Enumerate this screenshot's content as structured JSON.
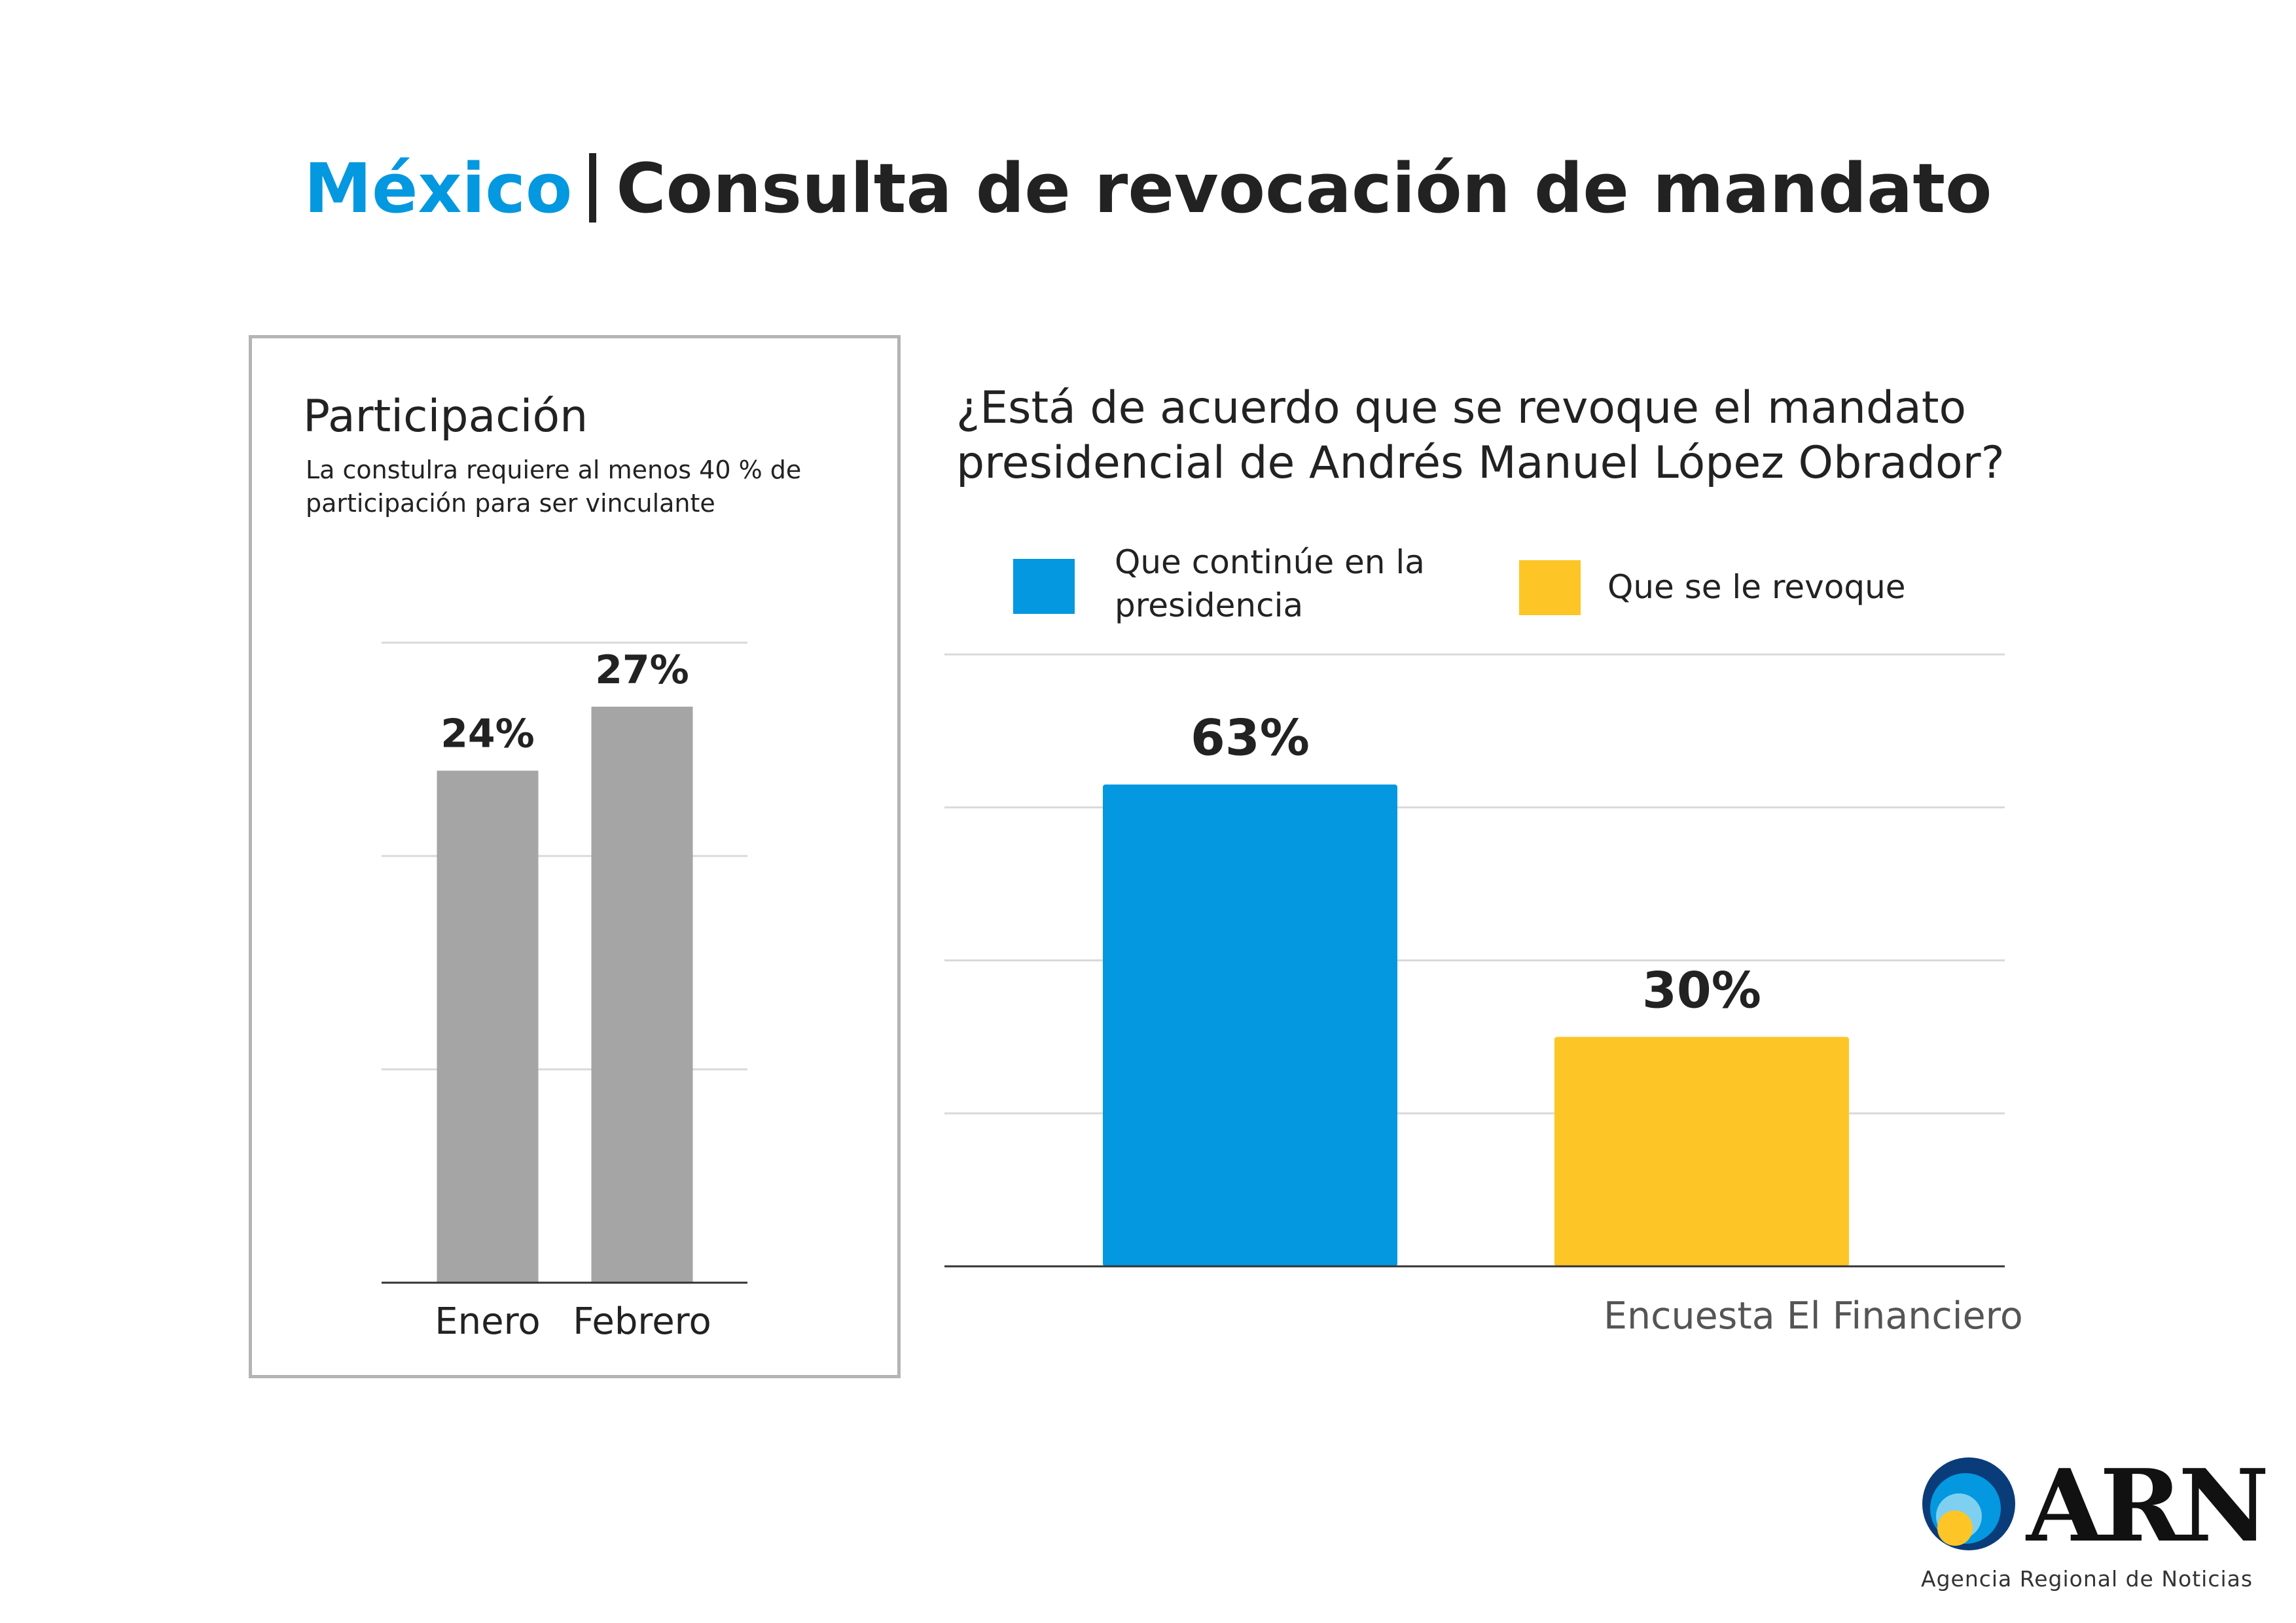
{
  "header": {
    "country": "México",
    "title": "Consulta de revocación de mandato"
  },
  "colors": {
    "accent_blue": "#0398df",
    "yellow": "#fdc526",
    "gray_bar": "#a5a5a5",
    "grid": "#d9d9d9",
    "panel_border": "#b4b4b4"
  },
  "left_panel": {
    "title": "Participación",
    "note": "La constulra requiere al menos 40 % de participación para ser vinculante"
  },
  "right_panel": {
    "question": "¿Está de acuerdo que se revoque el mandato presidencial de Andrés Manuel López Obrador?",
    "legend": [
      {
        "label": "Que continúe en la presidencia",
        "color": "#0398df"
      },
      {
        "label": "Que se le revoque",
        "color": "#fdc526"
      }
    ],
    "source": "Encuesta El Financiero"
  },
  "chart_data": [
    {
      "type": "bar",
      "title": "Participación",
      "categories": [
        "Enero",
        "Febrero"
      ],
      "values": [
        24,
        27
      ],
      "value_labels": [
        "24%",
        "27%"
      ],
      "ylim": [
        0,
        30
      ],
      "grid": true,
      "color": "#a5a5a5"
    },
    {
      "type": "bar",
      "title": "¿Está de acuerdo que se revoque el mandato presidencial de Andrés Manuel López Obrador?",
      "categories": [
        "Que continúe en la presidencia",
        "Que se le revoque"
      ],
      "values": [
        63,
        30
      ],
      "value_labels": [
        "63%",
        "30%"
      ],
      "colors": [
        "#0398df",
        "#fdc526"
      ],
      "ylim": [
        0,
        80
      ],
      "grid": true,
      "legend_position": "top"
    }
  ],
  "logo": {
    "text": "ARN",
    "subtitle": "Agencia Regional de Noticias"
  }
}
